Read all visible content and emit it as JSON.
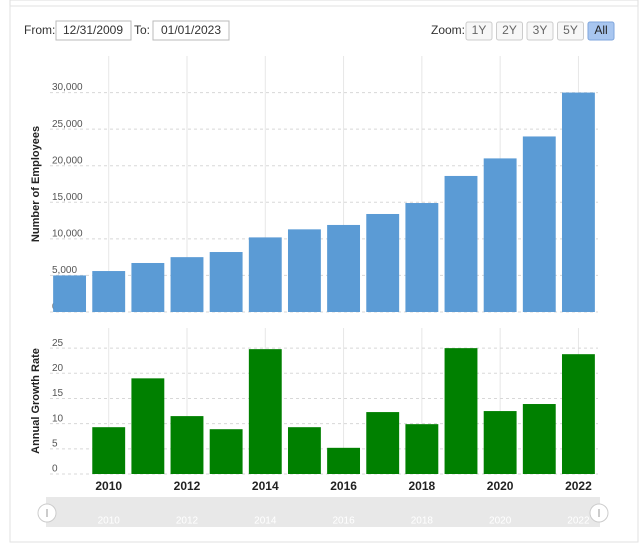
{
  "ui": {
    "from_label": "From:",
    "from_value": "12/31/2009",
    "to_label": "To:",
    "to_value": "01/01/2023",
    "zoom_label": "Zoom:",
    "zoom_buttons": [
      "1Y",
      "2Y",
      "3Y",
      "5Y",
      "All"
    ],
    "zoom_active": 4
  },
  "chart_data": [
    {
      "type": "bar",
      "y_label": "Number of Employees",
      "color": "#5b9bd5",
      "x": [
        2009,
        2010,
        2011,
        2012,
        2013,
        2014,
        2015,
        2016,
        2017,
        2018,
        2019,
        2020,
        2021,
        2022
      ],
      "values": [
        5000,
        5600,
        6700,
        7500,
        8200,
        10200,
        11300,
        11900,
        13400,
        14900,
        18600,
        21000,
        24000,
        30000
      ],
      "xlim": [
        2008.5,
        2022.5
      ],
      "ylim": [
        0,
        35000
      ],
      "yticks": [
        0,
        {
          "value": 5000,
          "label": "5,000"
        },
        {
          "value": 10000,
          "label": "10,000"
        },
        {
          "value": 15000,
          "label": "15,000"
        },
        {
          "value": 20000,
          "label": "20,000"
        },
        {
          "value": 25000,
          "label": "25,000"
        },
        {
          "value": 30000,
          "label": "30,000"
        }
      ],
      "grid": true
    },
    {
      "type": "bar",
      "y_label": "Annual Growth Rate",
      "color": "#008000",
      "x": [
        2009,
        2010,
        2011,
        2012,
        2013,
        2014,
        2015,
        2016,
        2017,
        2018,
        2019,
        2020,
        2021,
        2022
      ],
      "values": [
        null,
        9.3,
        19.0,
        11.5,
        8.9,
        24.8,
        9.3,
        5.2,
        12.3,
        9.9,
        25.0,
        12.5,
        13.9,
        23.8
      ],
      "xlim": [
        2008.5,
        2022.5
      ],
      "ylim": [
        0,
        29
      ],
      "xticks": [
        2010,
        2012,
        2014,
        2016,
        2018,
        2020,
        2022
      ],
      "yticks": [
        0,
        5,
        10,
        15,
        20,
        25
      ],
      "grid": true
    }
  ]
}
